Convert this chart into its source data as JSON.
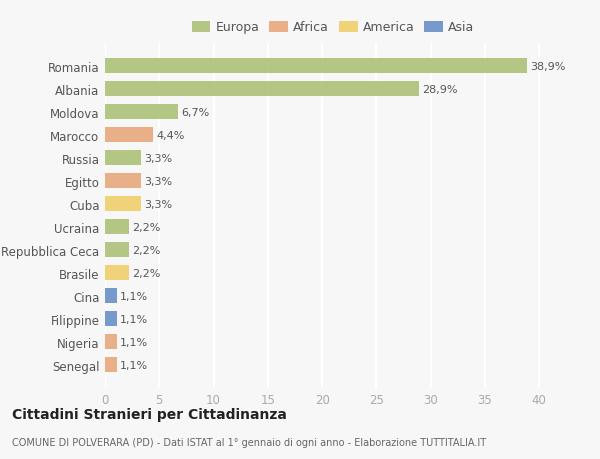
{
  "countries": [
    "Romania",
    "Albania",
    "Moldova",
    "Marocco",
    "Russia",
    "Egitto",
    "Cuba",
    "Ucraina",
    "Repubblica Ceca",
    "Brasile",
    "Cina",
    "Filippine",
    "Nigeria",
    "Senegal"
  ],
  "values": [
    38.9,
    28.9,
    6.7,
    4.4,
    3.3,
    3.3,
    3.3,
    2.2,
    2.2,
    2.2,
    1.1,
    1.1,
    1.1,
    1.1
  ],
  "labels": [
    "38,9%",
    "28,9%",
    "6,7%",
    "4,4%",
    "3,3%",
    "3,3%",
    "3,3%",
    "2,2%",
    "2,2%",
    "2,2%",
    "1,1%",
    "1,1%",
    "1,1%",
    "1,1%"
  ],
  "colors": [
    "#adc178",
    "#adc178",
    "#adc178",
    "#e8a87c",
    "#adc178",
    "#e8a87c",
    "#f0d06a",
    "#adc178",
    "#adc178",
    "#f0d06a",
    "#6a8fc8",
    "#6a8fc8",
    "#e8a87c",
    "#e8a87c"
  ],
  "legend": [
    {
      "label": "Europa",
      "color": "#adc178"
    },
    {
      "label": "Africa",
      "color": "#e8a87c"
    },
    {
      "label": "America",
      "color": "#f0d06a"
    },
    {
      "label": "Asia",
      "color": "#6a8fc8"
    }
  ],
  "xlim": [
    0,
    42
  ],
  "xticks": [
    0,
    5,
    10,
    15,
    20,
    25,
    30,
    35,
    40
  ],
  "title": "Cittadini Stranieri per Cittadinanza",
  "subtitle": "COMUNE DI POLVERARA (PD) - Dati ISTAT al 1° gennaio di ogni anno - Elaborazione TUTTITALIA.IT",
  "background_color": "#f7f7f7",
  "grid_color": "#ffffff",
  "bar_height": 0.65
}
